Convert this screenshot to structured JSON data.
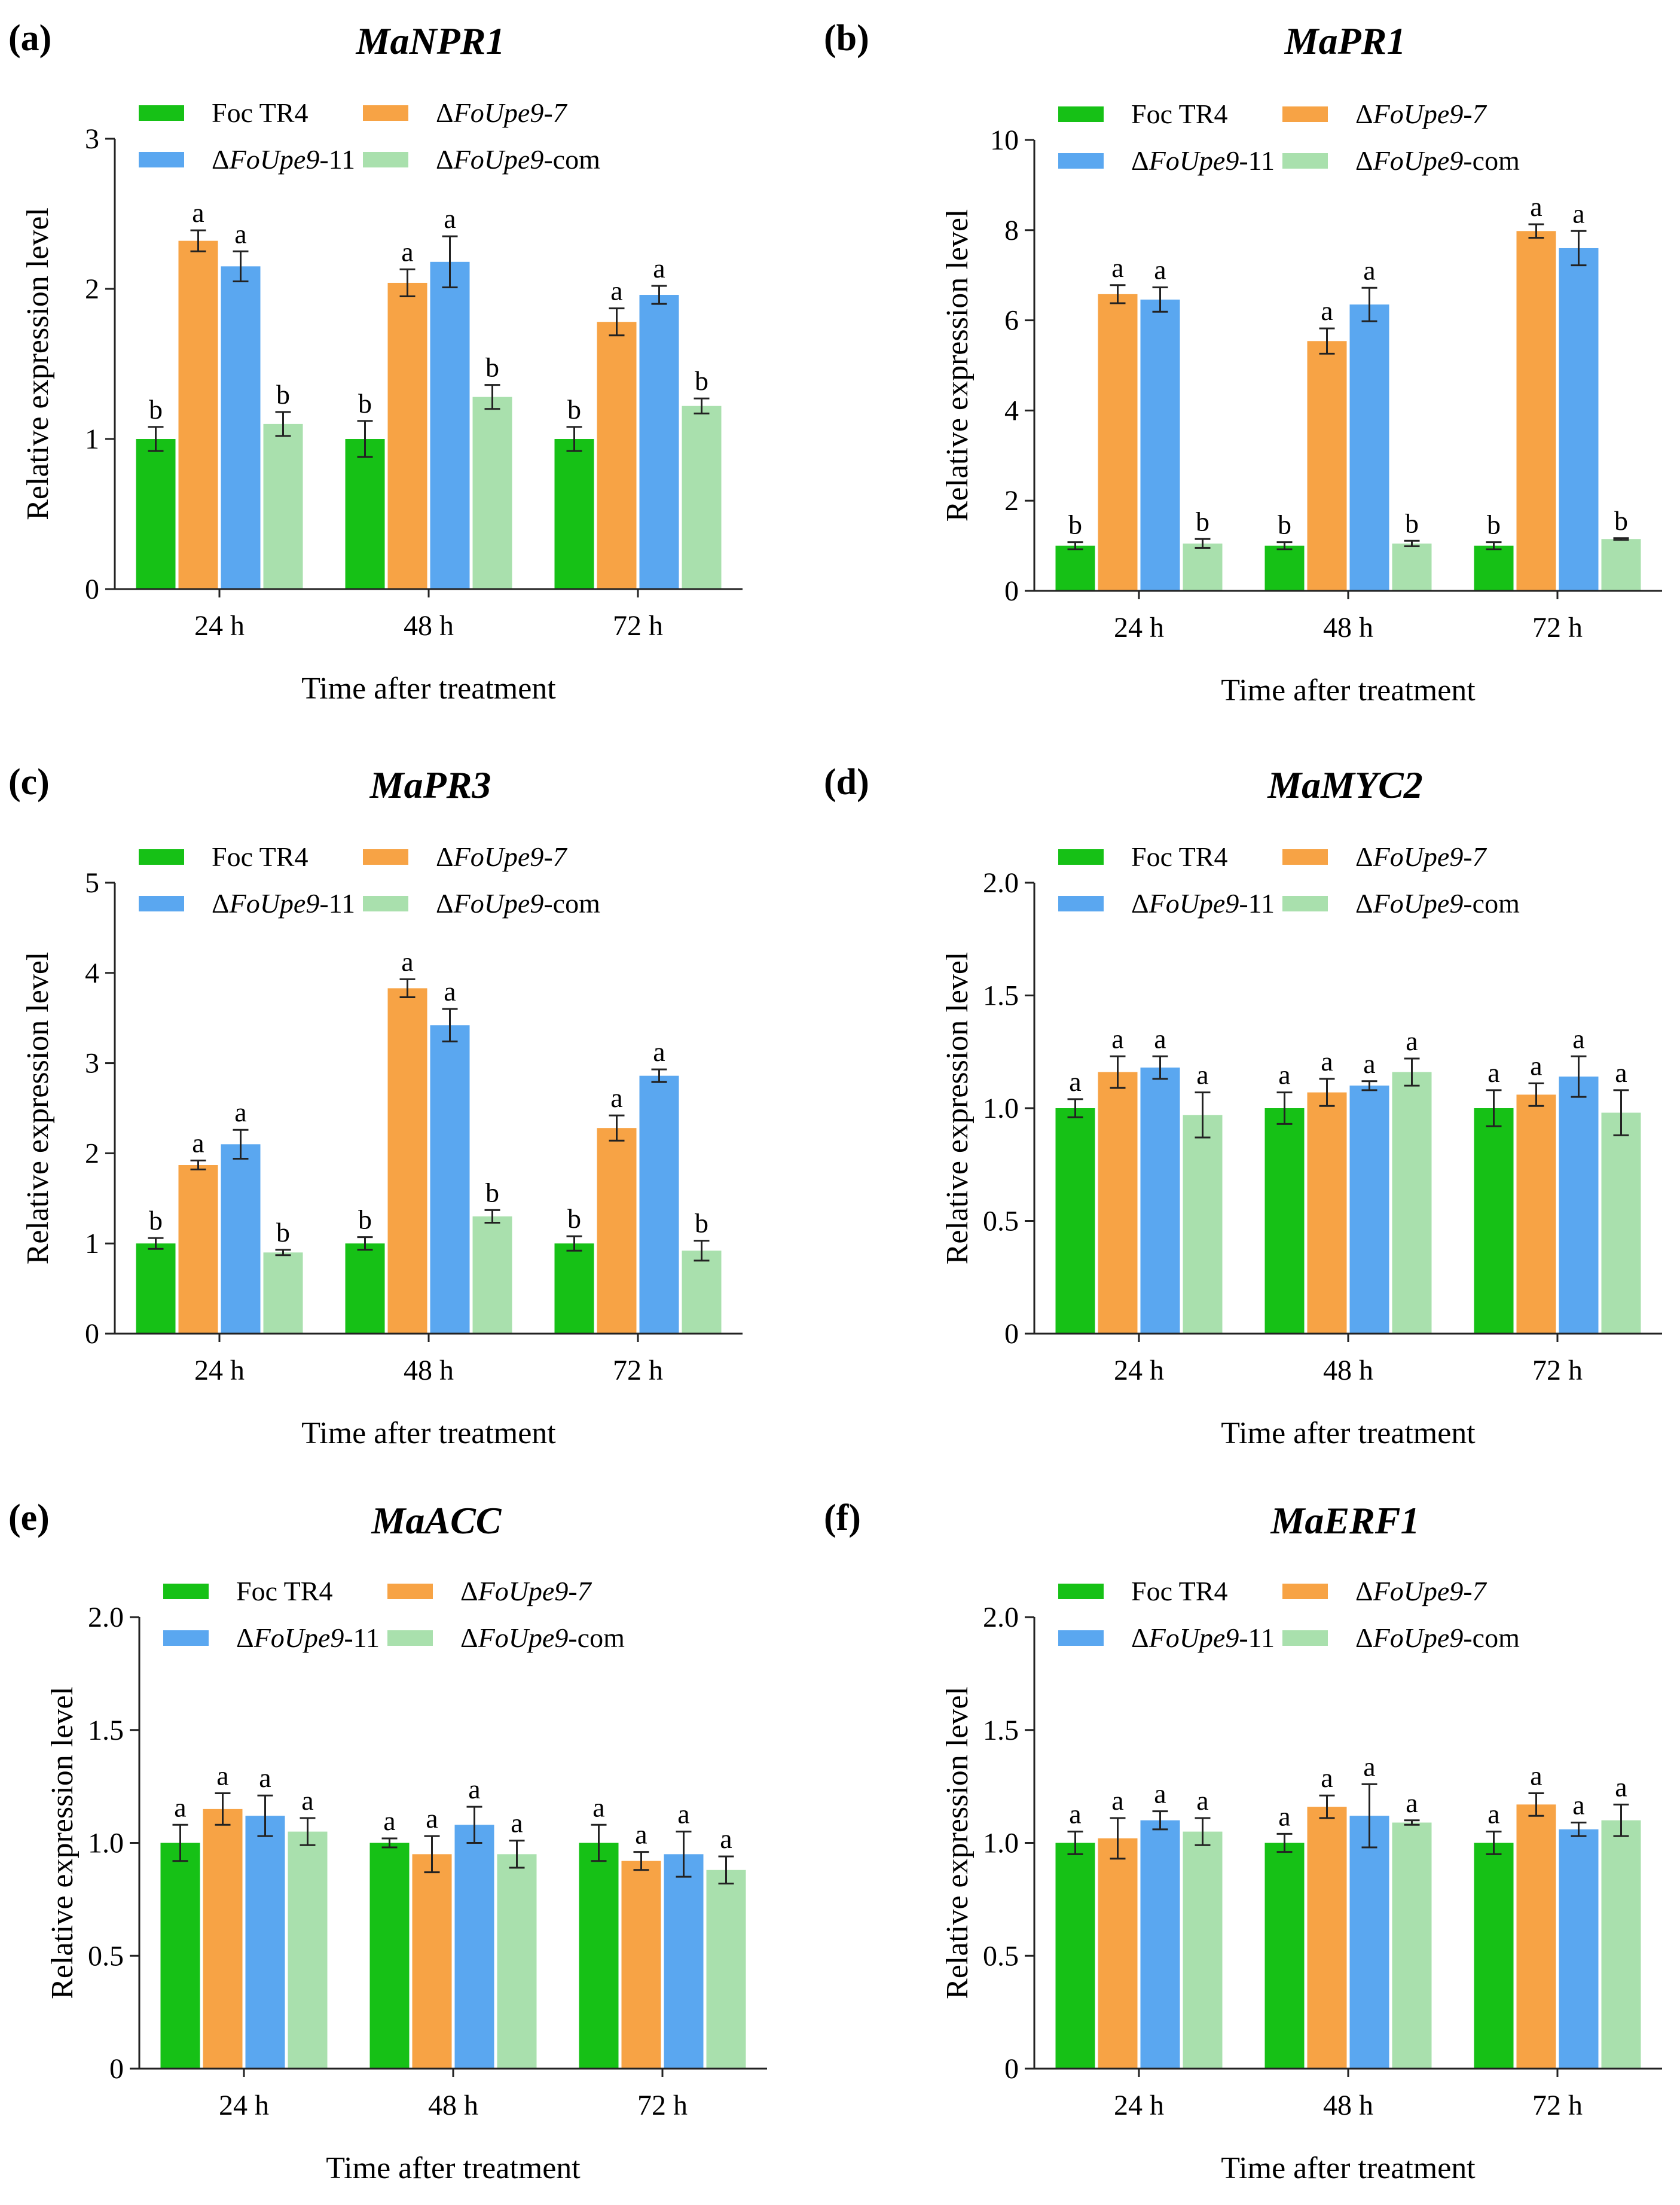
{
  "figure": {
    "legend_labels": [
      "Foc TR4",
      "ΔFoUpe9-7",
      "ΔFoUpe9-11",
      "ΔFoUpe9-com"
    ],
    "colors": [
      "#16c116",
      "#f7a345",
      "#5aa7f0",
      "#a9e0ad"
    ],
    "x_label": "Time after treatment",
    "y_label": "Relative expression level"
  },
  "chart_data": [
    {
      "panel": "(a)",
      "title": "MaNPR1",
      "type": "bar",
      "categories": [
        "24 h",
        "48 h",
        "72 h"
      ],
      "ylim": [
        0,
        3
      ],
      "yticks": [
        "0",
        "1",
        "2",
        "3"
      ],
      "xlabel": "Time after treatment",
      "ylabel": "Relative expression level",
      "series": [
        {
          "name": "Foc TR4",
          "values": [
            1.0,
            1.0,
            1.0
          ],
          "errors": [
            0.08,
            0.12,
            0.08
          ],
          "letters": [
            "b",
            "b",
            "b"
          ]
        },
        {
          "name": "ΔFoUpe9-7",
          "values": [
            2.32,
            2.04,
            1.78
          ],
          "errors": [
            0.07,
            0.09,
            0.09
          ],
          "letters": [
            "a",
            "a",
            "a"
          ]
        },
        {
          "name": "ΔFoUpe9-11",
          "values": [
            2.15,
            2.18,
            1.96
          ],
          "errors": [
            0.1,
            0.17,
            0.06
          ],
          "letters": [
            "a",
            "a",
            "a"
          ]
        },
        {
          "name": "ΔFoUpe9-com",
          "values": [
            1.1,
            1.28,
            1.22
          ],
          "errors": [
            0.08,
            0.08,
            0.05
          ],
          "letters": [
            "b",
            "b",
            "b"
          ]
        }
      ]
    },
    {
      "panel": "(b)",
      "title": "MaPR1",
      "type": "bar",
      "categories": [
        "24 h",
        "48 h",
        "72 h"
      ],
      "ylim": [
        0,
        10
      ],
      "yticks": [
        "0",
        "2",
        "4",
        "6",
        "8",
        "10"
      ],
      "xlabel": "Time after treatment",
      "ylabel": "Relative expression level",
      "series": [
        {
          "name": "Foc TR4",
          "values": [
            1.0,
            1.0,
            1.0
          ],
          "errors": [
            0.08,
            0.08,
            0.08
          ],
          "letters": [
            "b",
            "b",
            "b"
          ]
        },
        {
          "name": "ΔFoUpe9-7",
          "values": [
            6.58,
            5.54,
            7.98
          ],
          "errors": [
            0.2,
            0.28,
            0.15
          ],
          "letters": [
            "a",
            "a",
            "a"
          ]
        },
        {
          "name": "ΔFoUpe9-11",
          "values": [
            6.46,
            6.35,
            7.6
          ],
          "errors": [
            0.27,
            0.37,
            0.38
          ],
          "letters": [
            "a",
            "a",
            "a"
          ]
        },
        {
          "name": "ΔFoUpe9-com",
          "values": [
            1.05,
            1.05,
            1.15
          ],
          "errors": [
            0.1,
            0.06,
            0.02
          ],
          "letters": [
            "b",
            "b",
            "b"
          ]
        }
      ]
    },
    {
      "panel": "(c)",
      "title": "MaPR3",
      "type": "bar",
      "categories": [
        "24 h",
        "48 h",
        "72 h"
      ],
      "ylim": [
        0,
        5
      ],
      "yticks": [
        "0",
        "1",
        "2",
        "3",
        "4",
        "5"
      ],
      "xlabel": "Time after treatment",
      "ylabel": "Relative expression level",
      "series": [
        {
          "name": "Foc TR4",
          "values": [
            1.0,
            1.0,
            1.0
          ],
          "errors": [
            0.06,
            0.07,
            0.08
          ],
          "letters": [
            "b",
            "b",
            "b"
          ]
        },
        {
          "name": "ΔFoUpe9-7",
          "values": [
            1.87,
            3.83,
            2.28
          ],
          "errors": [
            0.05,
            0.1,
            0.14
          ],
          "letters": [
            "a",
            "a",
            "a"
          ]
        },
        {
          "name": "ΔFoUpe9-11",
          "values": [
            2.1,
            3.42,
            2.86
          ],
          "errors": [
            0.16,
            0.18,
            0.07
          ],
          "letters": [
            "a",
            "a",
            "a"
          ]
        },
        {
          "name": "ΔFoUpe9-com",
          "values": [
            0.9,
            1.3,
            0.92
          ],
          "errors": [
            0.03,
            0.07,
            0.11
          ],
          "letters": [
            "b",
            "b",
            "b"
          ]
        }
      ]
    },
    {
      "panel": "(d)",
      "title": "MaMYC2",
      "type": "bar",
      "categories": [
        "24 h",
        "48 h",
        "72 h"
      ],
      "ylim": [
        0,
        2
      ],
      "yticks": [
        "0",
        "0.5",
        "1.0",
        "1.5",
        "2.0"
      ],
      "xlabel": "Time after treatment",
      "ylabel": "Relative expression level",
      "series": [
        {
          "name": "Foc TR4",
          "values": [
            1.0,
            1.0,
            1.0
          ],
          "errors": [
            0.04,
            0.07,
            0.08
          ],
          "letters": [
            "a",
            "a",
            "a"
          ]
        },
        {
          "name": "ΔFoUpe9-7",
          "values": [
            1.16,
            1.07,
            1.06
          ],
          "errors": [
            0.07,
            0.06,
            0.05
          ],
          "letters": [
            "a",
            "a",
            "a"
          ]
        },
        {
          "name": "ΔFoUpe9-11",
          "values": [
            1.18,
            1.1,
            1.14
          ],
          "errors": [
            0.05,
            0.02,
            0.09
          ],
          "letters": [
            "a",
            "a",
            "a"
          ]
        },
        {
          "name": "ΔFoUpe9-com",
          "values": [
            0.97,
            1.16,
            0.98
          ],
          "errors": [
            0.1,
            0.06,
            0.1
          ],
          "letters": [
            "a",
            "a",
            "a"
          ]
        }
      ]
    },
    {
      "panel": "(e)",
      "title": "MaACC",
      "type": "bar",
      "categories": [
        "24 h",
        "48 h",
        "72 h"
      ],
      "ylim": [
        0,
        2
      ],
      "yticks": [
        "0",
        "0.5",
        "1.0",
        "1.5",
        "2.0"
      ],
      "xlabel": "Time after treatment",
      "ylabel": "Relative expression level",
      "series": [
        {
          "name": "Foc TR4",
          "values": [
            1.0,
            1.0,
            1.0
          ],
          "errors": [
            0.08,
            0.02,
            0.08
          ],
          "letters": [
            "a",
            "a",
            "a"
          ]
        },
        {
          "name": "ΔFoUpe9-7",
          "values": [
            1.15,
            0.95,
            0.92
          ],
          "errors": [
            0.07,
            0.08,
            0.04
          ],
          "letters": [
            "a",
            "a",
            "a"
          ]
        },
        {
          "name": "ΔFoUpe9-11",
          "values": [
            1.12,
            1.08,
            0.95
          ],
          "errors": [
            0.09,
            0.08,
            0.1
          ],
          "letters": [
            "a",
            "a",
            "a"
          ]
        },
        {
          "name": "ΔFoUpe9-com",
          "values": [
            1.05,
            0.95,
            0.88
          ],
          "errors": [
            0.06,
            0.06,
            0.06
          ],
          "letters": [
            "a",
            "a",
            "a"
          ]
        }
      ]
    },
    {
      "panel": "(f)",
      "title": "MaERF1",
      "type": "bar",
      "categories": [
        "24 h",
        "48 h",
        "72 h"
      ],
      "ylim": [
        0,
        2
      ],
      "yticks": [
        "0",
        "0.5",
        "1.0",
        "1.5",
        "2.0"
      ],
      "xlabel": "Time after treatment",
      "ylabel": "Relative expression level",
      "series": [
        {
          "name": "Foc TR4",
          "values": [
            1.0,
            1.0,
            1.0
          ],
          "errors": [
            0.05,
            0.04,
            0.05
          ],
          "letters": [
            "a",
            "a",
            "a"
          ]
        },
        {
          "name": "ΔFoUpe9-7",
          "values": [
            1.02,
            1.16,
            1.17
          ],
          "errors": [
            0.09,
            0.05,
            0.05
          ],
          "letters": [
            "a",
            "a",
            "a"
          ]
        },
        {
          "name": "ΔFoUpe9-11",
          "values": [
            1.1,
            1.12,
            1.06
          ],
          "errors": [
            0.04,
            0.14,
            0.03
          ],
          "letters": [
            "a",
            "a",
            "a"
          ]
        },
        {
          "name": "ΔFoUpe9-com",
          "values": [
            1.05,
            1.09,
            1.1
          ],
          "errors": [
            0.06,
            0.01,
            0.07
          ],
          "letters": [
            "a",
            "a",
            "a"
          ]
        }
      ]
    }
  ]
}
